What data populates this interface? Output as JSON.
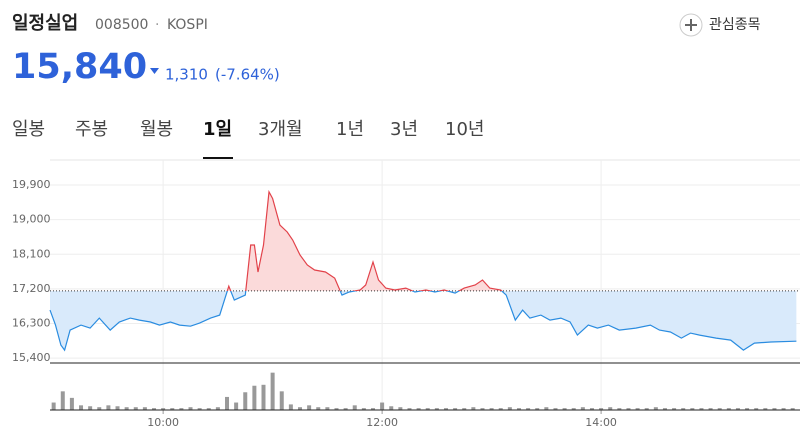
{
  "header": {
    "name": "일정실업",
    "code": "008500",
    "separator": "·",
    "market": "KOSPI",
    "watch_button": "관심종목"
  },
  "quote": {
    "price": "15,840",
    "change": "1,310",
    "change_percent": "(-7.64%)"
  },
  "tabs": {
    "items": [
      "일봉",
      "주봉",
      "월봉",
      "1일",
      "3개월",
      "1년",
      "3년",
      "10년"
    ],
    "active": 3
  },
  "chart_data": {
    "type": "line",
    "x": [
      538,
      541,
      544,
      546,
      549,
      555,
      560,
      565,
      571,
      576,
      582,
      587,
      593,
      598,
      604,
      609,
      615,
      620,
      626,
      631,
      636,
      639,
      645,
      648,
      650,
      652,
      655,
      658,
      660,
      664,
      668,
      671,
      675,
      679,
      683,
      689,
      694,
      698,
      702,
      708,
      711,
      715,
      718,
      722,
      727,
      733,
      738,
      744,
      749,
      754,
      760,
      765,
      771,
      775,
      779,
      785,
      788,
      793,
      797,
      801,
      807,
      812,
      818,
      823,
      827,
      833,
      838,
      844,
      850,
      859,
      867,
      872,
      878,
      884,
      889,
      894,
      903,
      911,
      918,
      924,
      933,
      947
    ],
    "values": [
      16650,
      16260,
      15740,
      15610,
      16130,
      16260,
      16180,
      16440,
      16130,
      16340,
      16440,
      16390,
      16340,
      16260,
      16340,
      16260,
      16230,
      16310,
      16440,
      16520,
      17270,
      16910,
      17040,
      18340,
      18340,
      17640,
      18340,
      19720,
      19550,
      18860,
      18680,
      18470,
      18080,
      17820,
      17690,
      17640,
      17480,
      17040,
      17120,
      17170,
      17300,
      17900,
      17430,
      17220,
      17170,
      17220,
      17120,
      17170,
      17120,
      17170,
      17090,
      17220,
      17300,
      17430,
      17220,
      17170,
      17040,
      16390,
      16650,
      16440,
      16520,
      16390,
      16440,
      16340,
      16000,
      16260,
      16180,
      16260,
      16130,
      16180,
      16260,
      16130,
      16080,
      15920,
      16050,
      16000,
      15920,
      15870,
      15610,
      15790,
      15820,
      15840
    ],
    "reference": 17150,
    "color_up": "#e2424a",
    "color_down": "#2a8ce0",
    "fill_up": "#fbdada",
    "fill_down": "#d9eafb",
    "xlim": [
      538,
      949
    ],
    "xticks": [
      {
        "value": 600,
        "label": "10:00"
      },
      {
        "value": 720,
        "label": "12:00"
      },
      {
        "value": 840,
        "label": "14:00"
      }
    ],
    "ylim": [
      15300,
      20550
    ],
    "yticks": [
      {
        "value": 19900,
        "label": "19,900"
      },
      {
        "value": 19000,
        "label": "19,000"
      },
      {
        "value": 18100,
        "label": "18,100"
      },
      {
        "value": 17200,
        "label": "17,200"
      },
      {
        "value": 16300,
        "label": "16,300"
      },
      {
        "value": 15400,
        "label": "15,400"
      }
    ],
    "grid": true,
    "volume": {
      "type": "bar",
      "color": "#999999",
      "ylim": [
        0,
        45
      ],
      "x": [
        540,
        545,
        550,
        555,
        560,
        565,
        570,
        575,
        580,
        585,
        590,
        595,
        600,
        605,
        610,
        615,
        620,
        625,
        630,
        635,
        640,
        645,
        650,
        655,
        660,
        665,
        670,
        675,
        680,
        685,
        690,
        695,
        700,
        705,
        710,
        715,
        720,
        725,
        730,
        735,
        740,
        745,
        750,
        755,
        760,
        765,
        770,
        775,
        780,
        785,
        790,
        795,
        800,
        805,
        810,
        815,
        820,
        825,
        830,
        835,
        840,
        845,
        850,
        855,
        860,
        865,
        870,
        875,
        880,
        885,
        890,
        895,
        900,
        905,
        910,
        915,
        920,
        925,
        930,
        935,
        940,
        945
      ],
      "values": [
        8,
        20,
        13,
        5,
        4,
        3,
        5,
        4,
        3,
        3,
        3,
        2,
        2,
        2,
        2,
        3,
        2,
        2,
        3,
        14,
        8,
        19,
        26,
        27,
        40,
        20,
        6,
        3,
        5,
        3,
        3,
        2,
        2,
        5,
        2,
        2,
        8,
        4,
        3,
        2,
        2,
        2,
        2,
        2,
        2,
        2,
        3,
        2,
        2,
        2,
        3,
        2,
        2,
        2,
        3,
        2,
        2,
        2,
        3,
        2,
        2,
        3,
        2,
        2,
        2,
        2,
        3,
        2,
        2,
        2,
        2,
        2,
        2,
        2,
        2,
        2,
        2,
        2,
        2,
        2,
        2,
        2
      ]
    }
  }
}
